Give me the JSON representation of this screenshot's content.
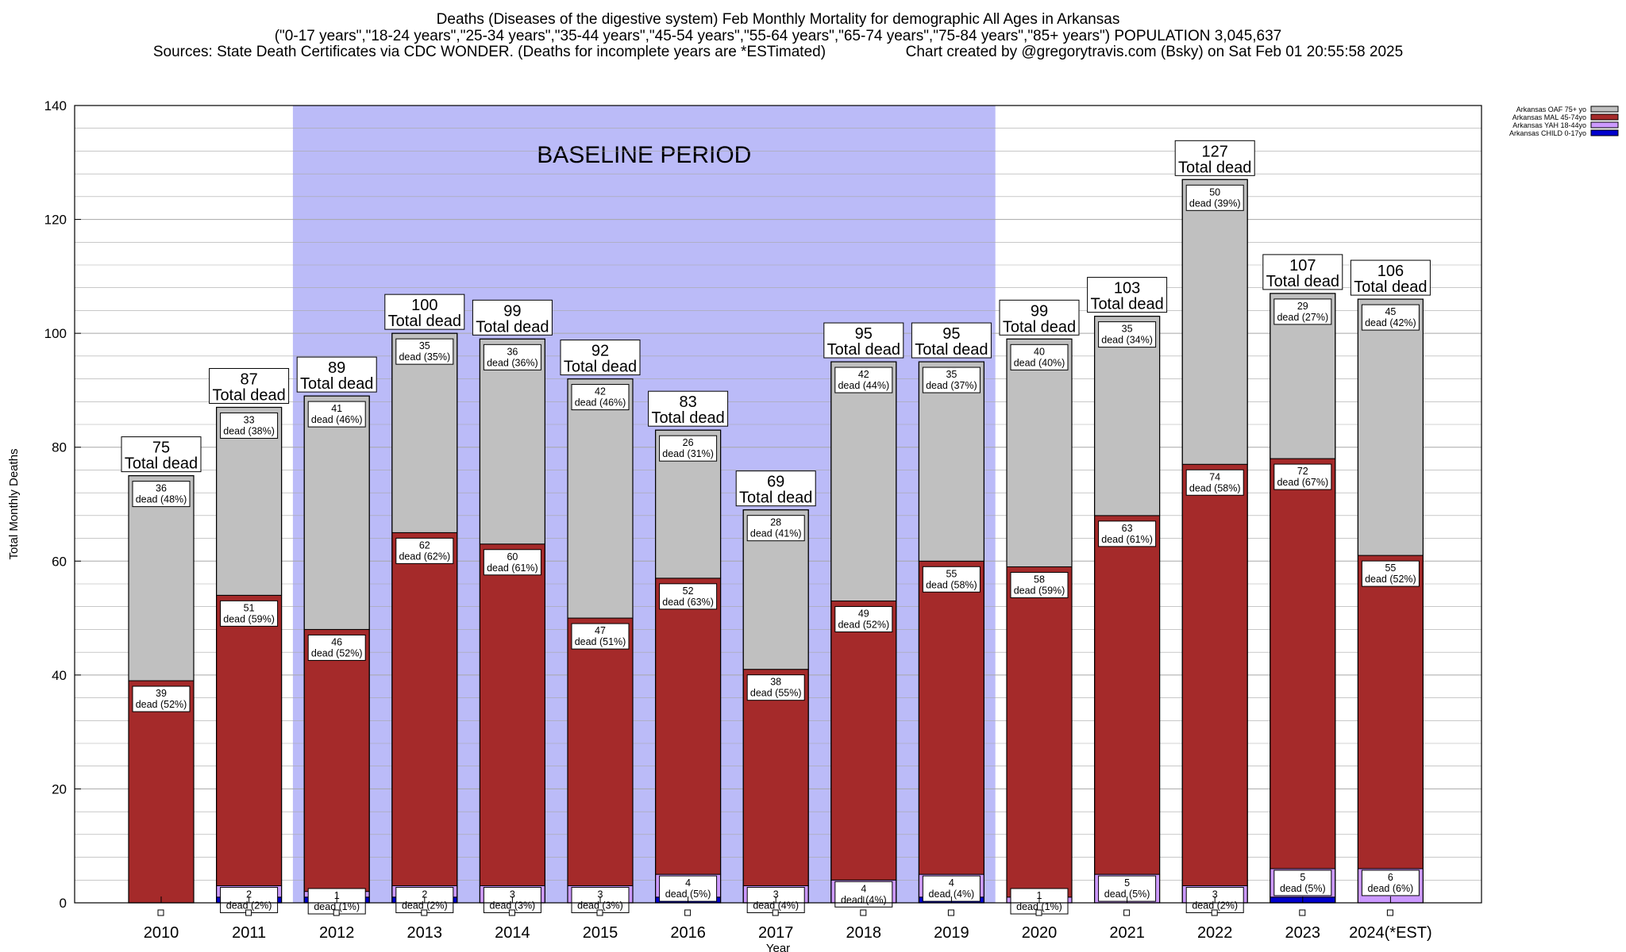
{
  "title_line1": "Deaths (Diseases of the digestive system) Feb Monthly Mortality for demographic All Ages in Arkansas",
  "title_line2": "(\"0-17 years\",\"18-24 years\",\"25-34 years\",\"35-44 years\",\"45-54 years\",\"55-64 years\",\"65-74 years\",\"75-84 years\",\"85+ years\") POPULATION 3,045,637",
  "title_line3_left": "Sources: State Death Certificates via CDC WONDER. (Deaths for incomplete years are *ESTimated)",
  "title_line3_right": "Chart created by @gregorytravis.com (Bsky) on Sat Feb 01 20:55:58 2025",
  "colors": {
    "baseline": "#bbbbf8",
    "oaf": "#c0c0c0",
    "mal": "#a52a2a",
    "yah": "#cc99ff",
    "child": "#0000cd"
  },
  "chart_data": {
    "type": "bar",
    "stacked": true,
    "xlabel": "Year",
    "ylabel": "Total Monthly Deaths",
    "ylim": [
      0,
      140
    ],
    "yticks": [
      0,
      20,
      40,
      60,
      80,
      100,
      120,
      140
    ],
    "grid": true,
    "legend_position": "top-right",
    "baseline_label": "BASELINE PERIOD",
    "baseline_range": [
      "2012",
      "2019"
    ],
    "total_suffix": "Total dead",
    "dead_word": "dead",
    "categories": [
      "2010",
      "2011",
      "2012",
      "2013",
      "2014",
      "2015",
      "2016",
      "2017",
      "2018",
      "2019",
      "2020",
      "2021",
      "2022",
      "2023",
      "2024(*EST)"
    ],
    "totals": [
      75,
      87,
      89,
      100,
      99,
      92,
      83,
      69,
      95,
      95,
      99,
      103,
      127,
      107,
      106
    ],
    "series": [
      {
        "name": "Arkansas CHILD 0-17yo",
        "key": "child",
        "values": [
          0,
          1,
          1,
          1,
          0,
          0,
          1,
          0,
          0,
          1,
          0,
          0,
          0,
          1,
          0
        ],
        "labels": [
          null,
          null,
          null,
          null,
          null,
          null,
          null,
          null,
          null,
          null,
          null,
          null,
          null,
          null,
          null
        ]
      },
      {
        "name": "Arkansas YAH 18-44yo",
        "key": "yah",
        "values": [
          0,
          2,
          1,
          2,
          3,
          3,
          4,
          3,
          4,
          4,
          1,
          5,
          3,
          5,
          6
        ],
        "labels": [
          null,
          "2|(2%)",
          "1|(1%)",
          "2|(2%)",
          "3|(3%)",
          "3|(3%)",
          "4|(5%)",
          "3|(4%)",
          "4|(4%)",
          "4|(4%)",
          "1|(1%)",
          "5|(5%)",
          "3|(2%)",
          "5|(5%)",
          "6|(6%)"
        ]
      },
      {
        "name": "Arkansas MAL 45-74yo",
        "key": "mal",
        "values": [
          39,
          51,
          46,
          62,
          60,
          47,
          52,
          38,
          49,
          55,
          58,
          63,
          74,
          72,
          55
        ],
        "labels": [
          "39|(52%)",
          "51|(59%)",
          "46|(52%)",
          "62|(62%)",
          "60|(61%)",
          "47|(51%)",
          "52|(63%)",
          "38|(55%)",
          "49|(52%)",
          "55|(58%)",
          "58|(59%)",
          "63|(61%)",
          "74|(58%)",
          "72|(67%)",
          "55|(52%)"
        ]
      },
      {
        "name": "Arkansas OAF 75+ yo",
        "key": "oaf",
        "values": [
          36,
          33,
          41,
          35,
          36,
          42,
          26,
          28,
          42,
          35,
          40,
          35,
          50,
          29,
          45
        ],
        "labels": [
          "36|(48%)",
          "33|(38%)",
          "41|(46%)",
          "35|(35%)",
          "36|(36%)",
          "42|(46%)",
          "26|(31%)",
          "28|(41%)",
          "42|(44%)",
          "35|(37%)",
          "40|(40%)",
          "35|(34%)",
          "50|(39%)",
          "29|(27%)",
          "45|(42%)"
        ]
      }
    ],
    "legend": [
      {
        "name": "Arkansas OAF 75+ yo",
        "key": "oaf"
      },
      {
        "name": "Arkansas MAL 45-74yo",
        "key": "mal"
      },
      {
        "name": "Arkansas YAH 18-44yo",
        "key": "yah"
      },
      {
        "name": "Arkansas CHILD 0-17yo",
        "key": "child"
      }
    ]
  }
}
